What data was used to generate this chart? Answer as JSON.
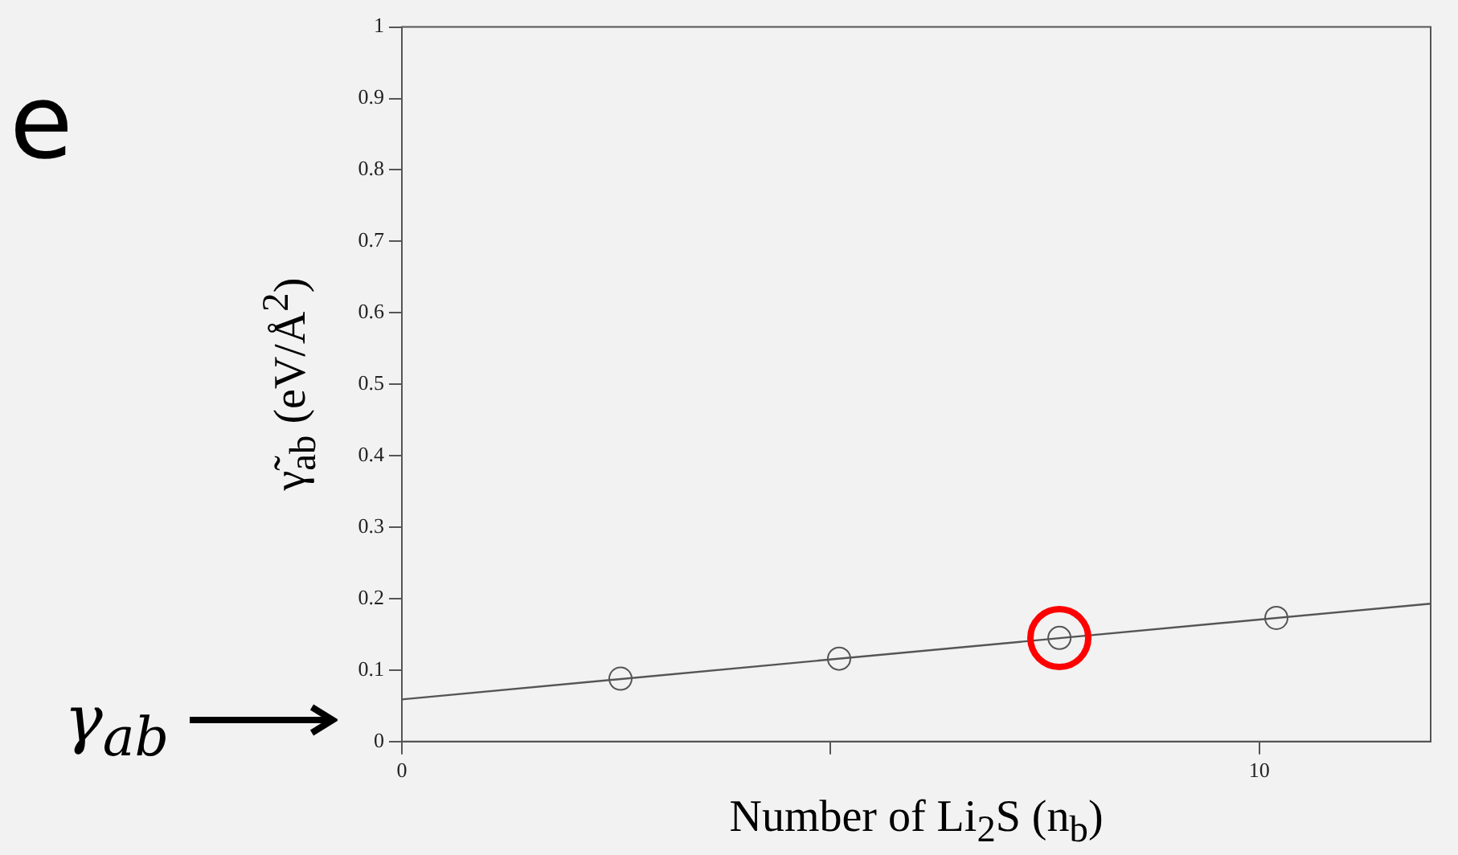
{
  "chart_data": {
    "type": "scatter",
    "xlabel": "Number of Li$_{2}$S (n$_{b}$)",
    "ylabel": "γ̃$_{ab}$ (eV/Å$^{2}$)",
    "xlim": [
      0,
      12
    ],
    "xticks": [
      0,
      {
        "value": 5,
        "label": null
      },
      10
    ],
    "ylim": [
      0,
      1
    ],
    "yticks": [
      0,
      0.1,
      0.2,
      0.3,
      0.4,
      0.5,
      0.6,
      0.7,
      0.8,
      0.9,
      1
    ],
    "grid": false,
    "legend": false,
    "series": [
      {
        "marker": "circle",
        "color": "#555555",
        "x": [
          2.55,
          5.1,
          7.67,
          10.2
        ],
        "values": [
          0.088,
          0.116,
          0.145,
          0.173
        ]
      },
      {
        "type": "line",
        "marker": "none",
        "color": "#555555",
        "x": [
          0,
          12
        ],
        "values": [
          0.059,
          0.193
        ]
      }
    ],
    "annotations": [
      "e",
      "γ$_{ab}$"
    ]
  }
}
